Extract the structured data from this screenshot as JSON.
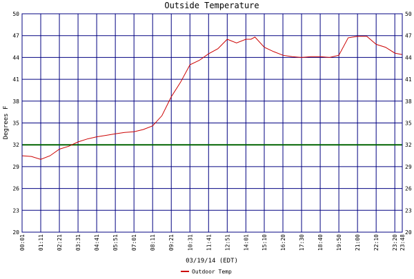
{
  "chart_data": {
    "type": "line",
    "title": "Outside Temperature",
    "xlabel": "03/19/14 (EDT)",
    "ylabel": "Degrees F",
    "ylim": [
      20,
      50
    ],
    "yticks": [
      "20",
      "23",
      "26",
      "29",
      "32",
      "35",
      "38",
      "41",
      "44",
      "47",
      "50"
    ],
    "xticks": [
      "00:01",
      "01:11",
      "02:21",
      "03:31",
      "04:41",
      "05:51",
      "07:01",
      "08:11",
      "09:21",
      "10:31",
      "11:41",
      "12:51",
      "14:01",
      "15:10",
      "16:20",
      "17:30",
      "18:40",
      "19:50",
      "21:00",
      "22:10",
      "23:20",
      "23:48"
    ],
    "reference_line": {
      "value": 32,
      "color": "#006400"
    },
    "grid": true,
    "colors": {
      "grid": "#000080",
      "series": "#cc0000",
      "background": "#ffffff"
    },
    "legend": {
      "position": "bottom-center"
    },
    "series": [
      {
        "name": "Outdoor Temp",
        "x": [
          "00:01",
          "00:36",
          "01:11",
          "01:46",
          "02:21",
          "02:56",
          "03:31",
          "04:06",
          "04:41",
          "05:16",
          "05:51",
          "06:26",
          "07:01",
          "07:36",
          "08:11",
          "08:46",
          "09:21",
          "09:56",
          "10:31",
          "11:06",
          "11:41",
          "12:16",
          "12:51",
          "13:26",
          "14:01",
          "14:20",
          "14:35",
          "15:10",
          "15:45",
          "16:20",
          "16:55",
          "17:30",
          "18:05",
          "18:40",
          "19:15",
          "19:50",
          "20:25",
          "21:00",
          "21:35",
          "22:10",
          "22:45",
          "23:20",
          "23:48"
        ],
        "values": [
          30.5,
          30.4,
          30.0,
          30.5,
          31.4,
          31.8,
          32.4,
          32.8,
          33.1,
          33.3,
          33.5,
          33.7,
          33.8,
          34.1,
          34.6,
          36.0,
          38.6,
          40.6,
          43.0,
          43.6,
          44.5,
          45.2,
          46.5,
          46.0,
          46.5,
          46.5,
          46.8,
          45.4,
          44.8,
          44.3,
          44.1,
          44.0,
          44.1,
          44.1,
          44.0,
          44.3,
          46.7,
          46.9,
          46.9,
          45.8,
          45.4,
          44.6,
          44.4
        ]
      }
    ]
  }
}
